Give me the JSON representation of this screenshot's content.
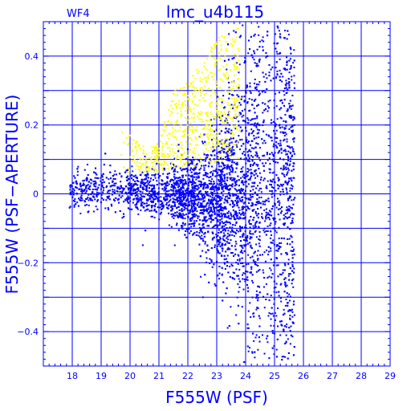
{
  "chart_data": {
    "type": "scatter",
    "title": "lmc_u4b115",
    "panel_label": "WF4",
    "xlabel": "F555W (PSF)",
    "ylabel": "F555W (PSF−APERTURE)",
    "xlim": [
      17,
      29
    ],
    "ylim": [
      -0.5,
      0.5
    ],
    "xticks": [
      "18",
      "19",
      "20",
      "21",
      "22",
      "23",
      "24",
      "25",
      "26",
      "27",
      "28",
      "29"
    ],
    "yticks": [
      "−0.4",
      "−0.2",
      "0",
      "0.2",
      "0.4"
    ],
    "grid": true,
    "colors": {
      "axes": "#0000ff",
      "grid": "#0000ff",
      "blue_series": "#0000ff",
      "yellow_series": "#ffff00"
    },
    "series": [
      {
        "color": "#ffff00",
        "envelope": [
          {
            "x": 19.5,
            "y": 0.22
          },
          {
            "x": 20.0,
            "y": 0.17
          },
          {
            "x": 20.5,
            "y": 0.14
          },
          {
            "x": 21.0,
            "y": 0.15
          },
          {
            "x": 21.5,
            "y": 0.3
          },
          {
            "x": 22.0,
            "y": 0.33
          },
          {
            "x": 22.5,
            "y": 0.38
          },
          {
            "x": 23.0,
            "y": 0.45
          },
          {
            "x": 23.5,
            "y": 0.48
          }
        ],
        "lower_bound": [
          {
            "x": 20.5,
            "y": 0.06
          },
          {
            "x": 21.5,
            "y": 0.07
          },
          {
            "x": 22.5,
            "y": 0.08
          },
          {
            "x": 23.5,
            "y": 0.1
          }
        ]
      },
      {
        "color": "#0000ff",
        "locus": [
          {
            "x": 18.0,
            "y": 0.01
          },
          {
            "x": 19.0,
            "y": 0.01
          },
          {
            "x": 20.0,
            "y": 0.01
          },
          {
            "x": 21.0,
            "y": 0.0
          },
          {
            "x": 22.0,
            "y": -0.01
          },
          {
            "x": 23.0,
            "y": -0.02
          },
          {
            "x": 24.0,
            "y": -0.04
          },
          {
            "x": 25.0,
            "y": -0.08
          }
        ],
        "scatter_half_width": [
          {
            "x": 18.0,
            "y": 0.03
          },
          {
            "x": 19.0,
            "y": 0.03
          },
          {
            "x": 20.0,
            "y": 0.03
          },
          {
            "x": 21.0,
            "y": 0.035
          },
          {
            "x": 22.0,
            "y": 0.05
          },
          {
            "x": 23.0,
            "y": 0.09
          },
          {
            "x": 24.0,
            "y": 0.18
          },
          {
            "x": 25.0,
            "y": 0.32
          }
        ],
        "faint_limit": 25.7
      }
    ]
  }
}
